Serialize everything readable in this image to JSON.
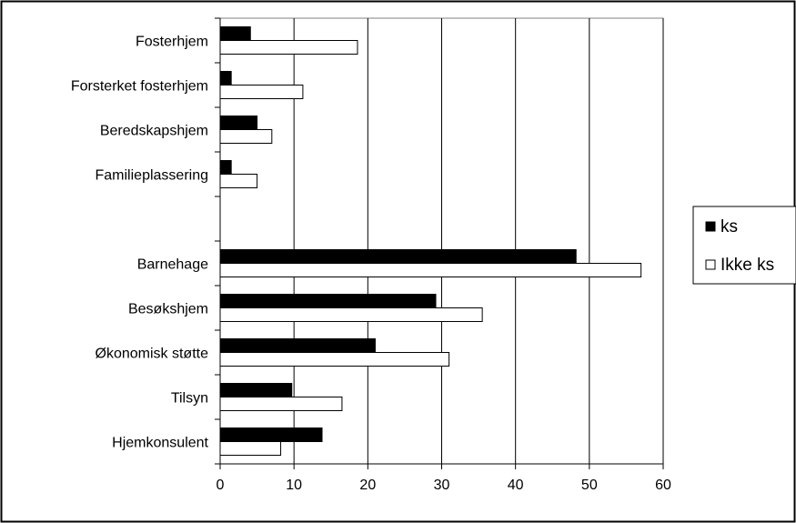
{
  "chart_data": {
    "type": "bar",
    "orientation": "horizontal",
    "categories": [
      "Fosterhjem",
      "Forsterket fosterhjem",
      "Beredskapshjem",
      "Familieplassering",
      "",
      "Barnehage",
      "Besøkshjem",
      "Økonomisk støtte",
      "Tilsyn",
      "Hjemkonsulent"
    ],
    "series": [
      {
        "name": "ks",
        "color": "#000000",
        "values": [
          4.1,
          1.5,
          5.0,
          1.5,
          null,
          48.2,
          29.2,
          21.0,
          9.7,
          13.8
        ]
      },
      {
        "name": "Ikke ks",
        "color": "#ffffff",
        "values": [
          18.6,
          11.2,
          7.0,
          5.0,
          null,
          57.0,
          35.5,
          31.0,
          16.5,
          8.2
        ]
      }
    ],
    "xlim": [
      0,
      60
    ],
    "xticks": [
      "0",
      "10",
      "20",
      "30",
      "40",
      "50",
      "60"
    ],
    "grid": true,
    "legend_position": "right"
  }
}
